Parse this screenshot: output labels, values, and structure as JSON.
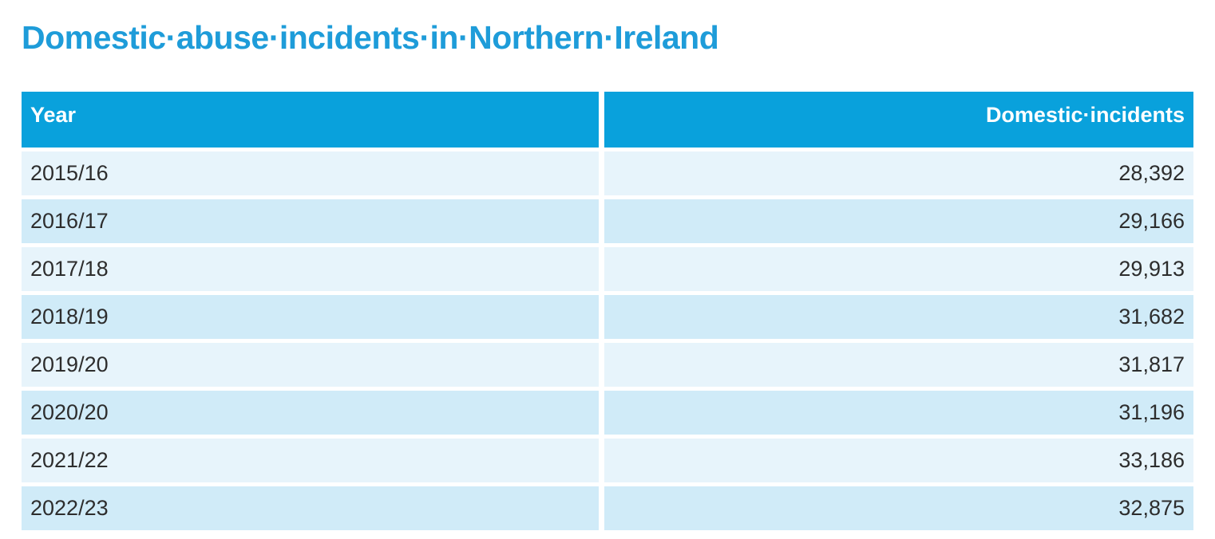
{
  "page": {
    "title": "Domestic·abuse·incidents·in·Northern·Ireland"
  },
  "colors": {
    "title_blue": "#1E9CD9",
    "accent_blue": "#09A1DC",
    "header_text": "#FFFFFF",
    "row_light": "#E7F4FB",
    "row_dark": "#D0EBF8",
    "body_text": "#2D2D2D"
  },
  "table": {
    "columns": [
      {
        "label": "Year",
        "align": "left"
      },
      {
        "label": "Domestic·incidents",
        "align": "right"
      }
    ],
    "rows": [
      {
        "year": "2015/16",
        "incidents": "28,392"
      },
      {
        "year": "2016/17",
        "incidents": "29,166"
      },
      {
        "year": "2017/18",
        "incidents": "29,913"
      },
      {
        "year": "2018/19",
        "incidents": "31,682"
      },
      {
        "year": "2019/20",
        "incidents": "31,817"
      },
      {
        "year": "2020/20",
        "incidents": "31,196"
      },
      {
        "year": "2021/22",
        "incidents": "33,186"
      },
      {
        "year": "2022/23",
        "incidents": "32,875"
      }
    ]
  }
}
